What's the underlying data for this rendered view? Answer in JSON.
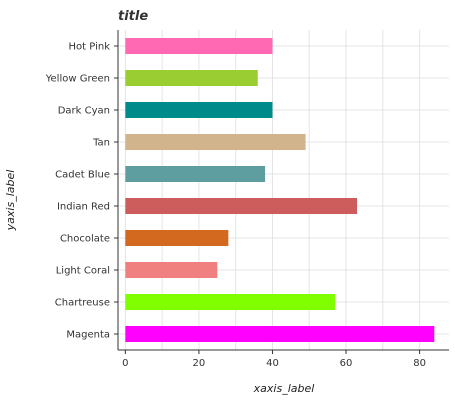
{
  "chart_data": {
    "type": "bar",
    "orientation": "horizontal",
    "title": "title",
    "xlabel": "xaxis_label",
    "ylabel": "yaxis_label",
    "xlim": [
      -2,
      88
    ],
    "xticks": [
      0,
      20,
      40,
      60,
      80
    ],
    "grid": true,
    "categories": [
      "Magenta",
      "Chartreuse",
      "Light Coral",
      "Chocolate",
      "Indian Red",
      "Cadet Blue",
      "Tan",
      "Dark Cyan",
      "Yellow Green",
      "Hot Pink"
    ],
    "values": [
      84,
      57,
      25,
      28,
      63,
      38,
      49,
      40,
      36,
      40
    ],
    "colors": [
      "#ff00ff",
      "#7fff00",
      "#f08080",
      "#d2691e",
      "#cd5c5c",
      "#5f9ea0",
      "#d2b48c",
      "#008b8b",
      "#9acd32",
      "#ff69b4"
    ]
  }
}
